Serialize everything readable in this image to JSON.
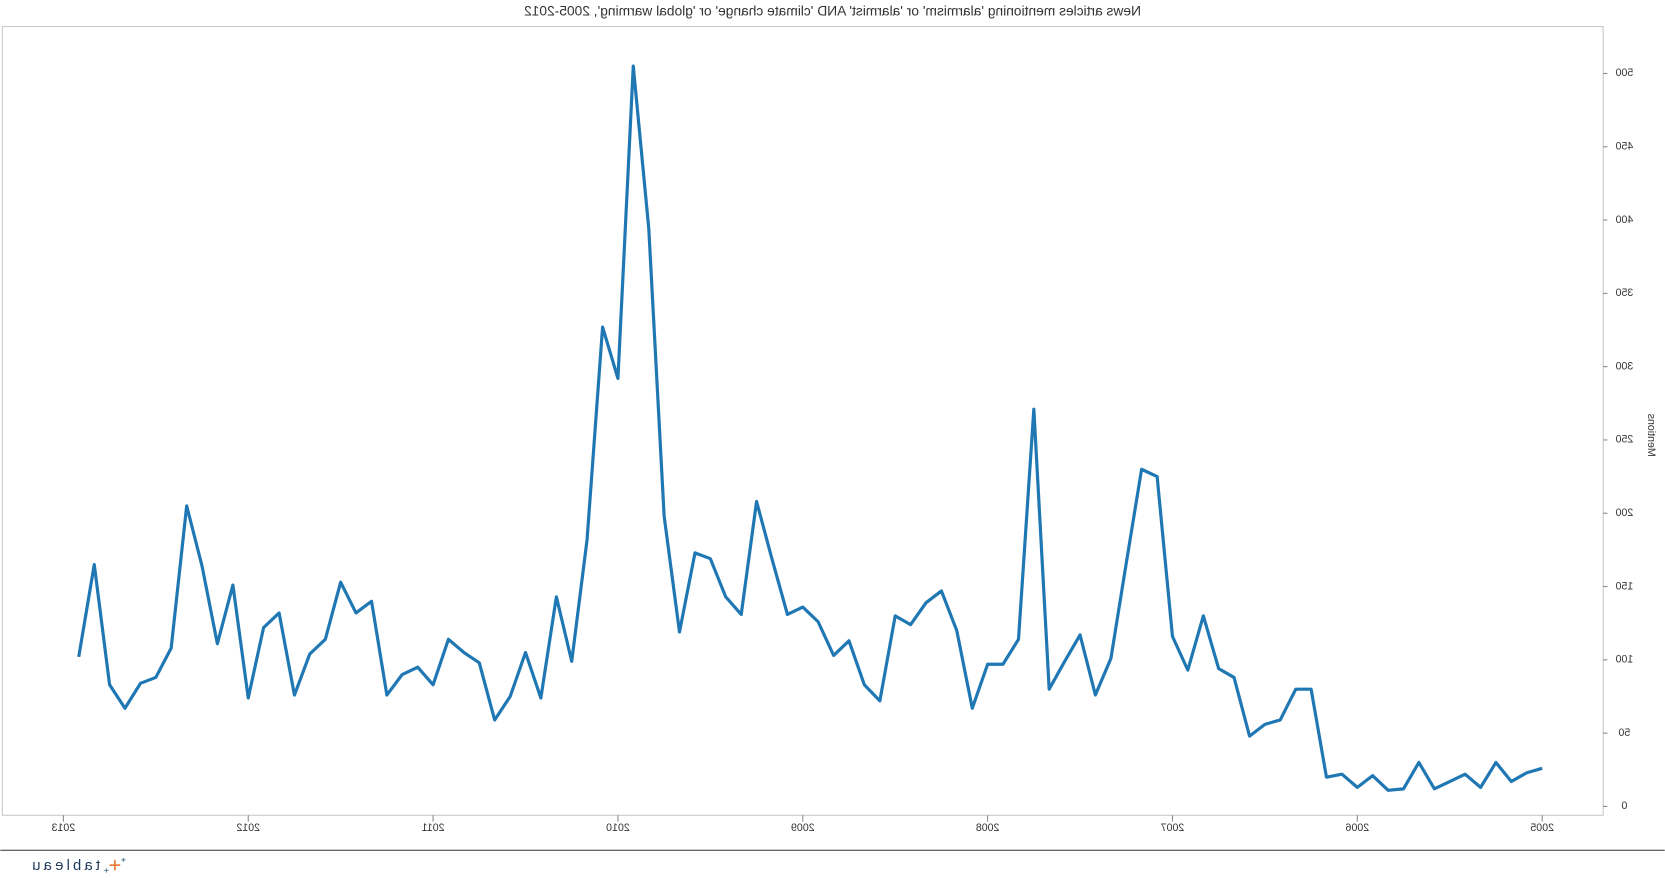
{
  "chart_data": {
    "type": "line",
    "title": "News articles mentioning 'alarmism' or 'alarmist' AND 'climate change' or 'global warming', 2005-2012",
    "y_label": "Mentions",
    "brand": "tableau",
    "mirrored": true,
    "x": [
      2005,
      2005.083,
      2005.167,
      2005.25,
      2005.333,
      2005.417,
      2005.5,
      2005.583,
      2005.667,
      2005.75,
      2005.833,
      2005.917,
      2006,
      2006.083,
      2006.167,
      2006.25,
      2006.333,
      2006.417,
      2006.5,
      2006.583,
      2006.667,
      2006.75,
      2006.833,
      2006.917,
      2007,
      2007.083,
      2007.167,
      2007.25,
      2007.333,
      2007.417,
      2007.5,
      2007.583,
      2007.667,
      2007.75,
      2007.833,
      2007.917,
      2008,
      2008.083,
      2008.167,
      2008.25,
      2008.333,
      2008.417,
      2008.5,
      2008.583,
      2008.667,
      2008.75,
      2008.833,
      2008.917,
      2009,
      2009.083,
      2009.167,
      2009.25,
      2009.333,
      2009.417,
      2009.5,
      2009.583,
      2009.667,
      2009.75,
      2009.833,
      2009.917,
      2010,
      2010.083,
      2010.167,
      2010.25,
      2010.333,
      2010.417,
      2010.5,
      2010.583,
      2010.667,
      2010.75,
      2010.833,
      2010.917,
      2011,
      2011.083,
      2011.167,
      2011.25,
      2011.333,
      2011.417,
      2011.5,
      2011.583,
      2011.667,
      2011.75,
      2011.833,
      2011.917,
      2012,
      2012.083,
      2012.167,
      2012.25,
      2012.333,
      2012.417,
      2012.5,
      2012.583,
      2012.667,
      2012.75,
      2012.833,
      2012.917
    ],
    "series": [
      {
        "name": "Mentions",
        "color": "#1f77b4",
        "values": [
          26,
          23,
          17,
          30,
          13,
          22,
          17,
          12,
          30,
          12,
          11,
          21,
          13,
          22,
          20,
          80,
          80,
          59,
          56,
          48,
          88,
          94,
          130,
          93,
          116,
          225,
          230,
          166,
          101,
          76,
          117,
          99,
          80,
          271,
          114,
          97,
          97,
          67,
          120,
          147,
          139,
          124,
          130,
          72,
          83,
          113,
          103,
          126,
          136,
          131,
          169,
          208,
          131,
          143,
          169,
          173,
          119,
          198,
          394,
          505,
          292,
          327,
          182,
          99,
          143,
          74,
          105,
          75,
          59,
          98,
          105,
          114,
          83,
          95,
          90,
          76,
          140,
          132,
          153,
          114,
          104,
          76,
          132,
          122,
          74,
          151,
          111,
          164,
          205,
          108,
          88,
          84,
          67,
          83,
          165,
          102
        ]
      }
    ],
    "xlim": [
      2004.67,
      2013.33
    ],
    "xticks": [
      2005,
      2006,
      2007,
      2008,
      2009,
      2010,
      2011,
      2012,
      2013
    ],
    "ylim": [
      -6,
      532
    ],
    "yticks": [
      0,
      50,
      100,
      150,
      200,
      250,
      300,
      350,
      400,
      450,
      500
    ]
  }
}
